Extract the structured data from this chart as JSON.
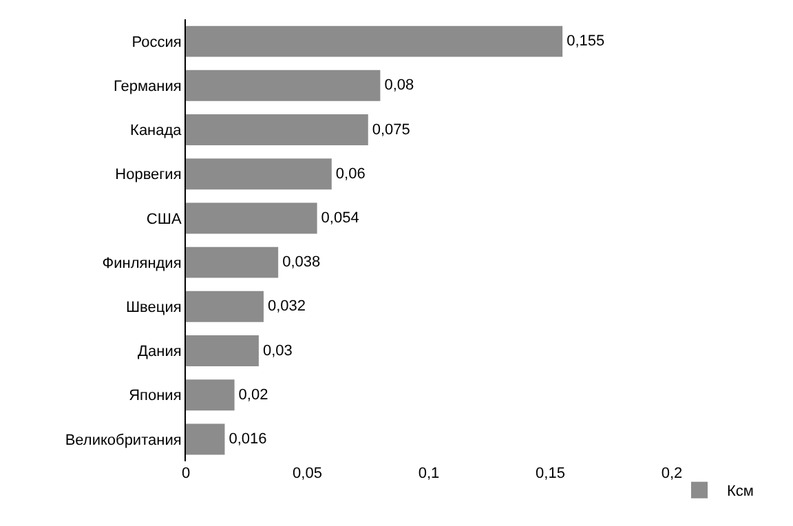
{
  "chart_data": {
    "type": "bar",
    "orientation": "horizontal",
    "categories": [
      "Россия",
      "Германия",
      "Канада",
      "Норвегия",
      "США",
      "Финляндия",
      "Швеция",
      "Дания",
      "Япония",
      "Великобритания"
    ],
    "series": [
      {
        "name": "Ксм",
        "color": "#8c8c8c",
        "values": [
          0.155,
          0.08,
          0.075,
          0.06,
          0.054,
          0.038,
          0.032,
          0.03,
          0.02,
          0.016
        ],
        "value_labels": [
          "0,155",
          "0,08",
          "0,075",
          "0,06",
          "0,054",
          "0,038",
          "0,032",
          "0,03",
          "0,02",
          "0,016"
        ]
      }
    ],
    "xlim": [
      0,
      0.2
    ],
    "xticks": [
      0,
      {
        "value": 0.05,
        "label": "0,05"
      },
      {
        "value": 0.1,
        "label": "0,1"
      },
      {
        "value": 0.15,
        "label": "0,15"
      },
      {
        "value": 0.2,
        "label": "0,2"
      }
    ],
    "grid": false,
    "legend": "bottom right"
  }
}
